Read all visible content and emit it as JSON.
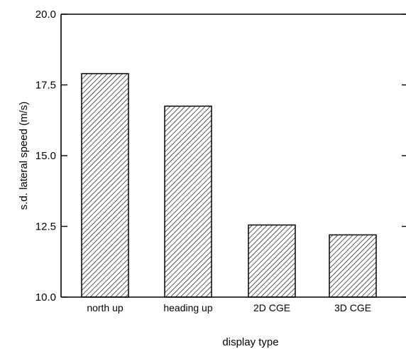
{
  "chart_data": {
    "type": "bar",
    "title": "",
    "xlabel": "display type",
    "ylabel": "s.d. lateral speed (m/s)",
    "ylim": [
      10.0,
      20.0
    ],
    "yticks": [
      10.0,
      12.5,
      15.0,
      17.5,
      20.0
    ],
    "ytick_labels": [
      "10.0",
      "12.5",
      "15.0",
      "17.5",
      "20.0"
    ],
    "categories": [
      "north up",
      "heading up",
      "2D CGE",
      "3D CGE"
    ],
    "values": [
      17.9,
      16.75,
      12.55,
      12.2
    ],
    "bar_fill": "hatched",
    "bar_stroke": "#000000",
    "grid": false,
    "legend": "none"
  }
}
